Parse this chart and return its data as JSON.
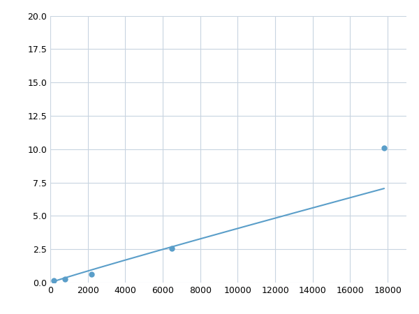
{
  "x": [
    200,
    800,
    2200,
    6500,
    17800
  ],
  "y": [
    0.15,
    0.25,
    0.65,
    2.55,
    10.1
  ],
  "line_color": "#5a9ec9",
  "marker_color": "#5a9ec9",
  "marker_size": 6,
  "xlim": [
    0,
    19000
  ],
  "ylim": [
    0,
    20
  ],
  "xticks": [
    0,
    2000,
    4000,
    6000,
    8000,
    10000,
    12000,
    14000,
    16000,
    18000
  ],
  "yticks": [
    0.0,
    2.5,
    5.0,
    7.5,
    10.0,
    12.5,
    15.0,
    17.5,
    20.0
  ],
  "grid_color": "#c8d4e0",
  "background_color": "#ffffff",
  "tick_fontsize": 9,
  "line_width": 1.5
}
